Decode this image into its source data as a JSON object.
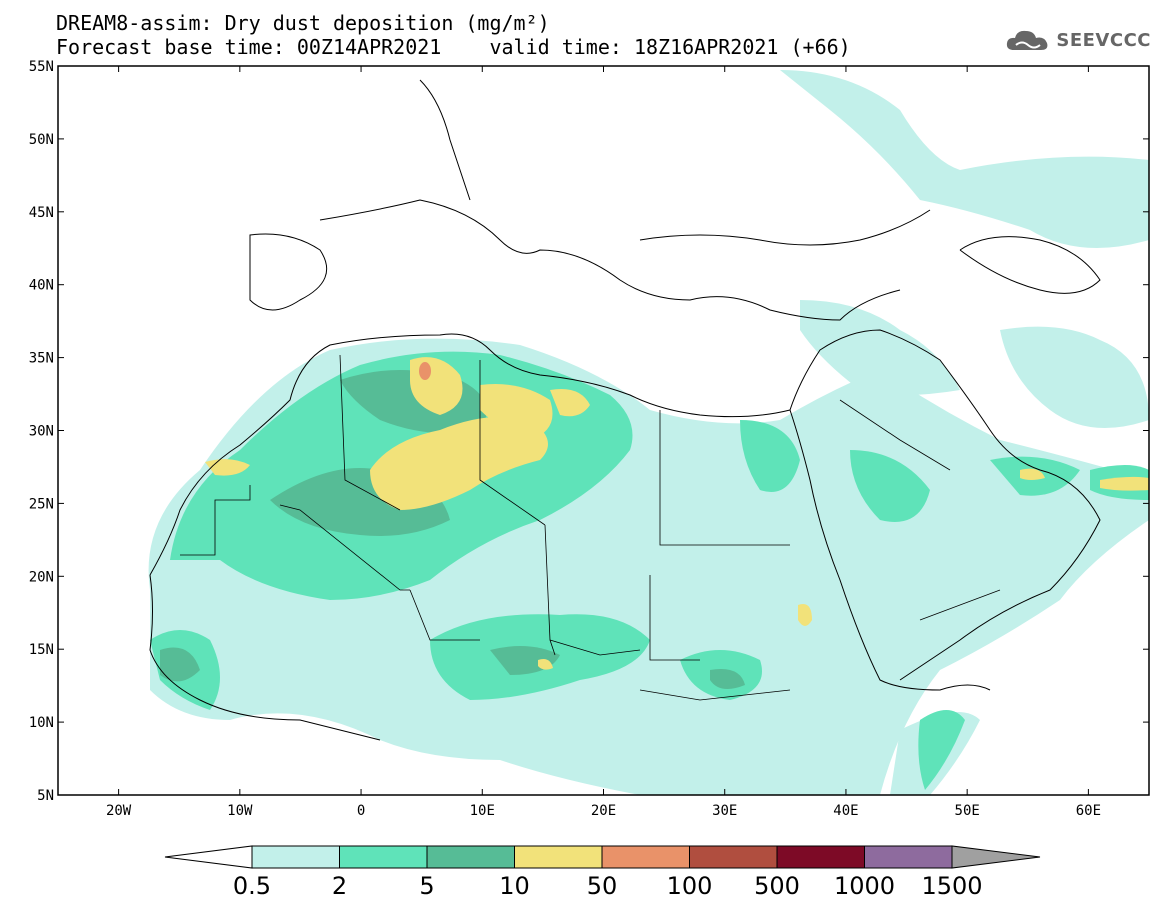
{
  "title": {
    "line1": "DREAM8-assim: Dry dust deposition (mg/m²)",
    "line2": "Forecast base time: 00Z14APR2021    valid time: 18Z16APR2021 (+66)"
  },
  "logo": {
    "text": "SEEVCCC",
    "icon": "cloud-icon"
  },
  "map": {
    "projection": "lat-lon",
    "lon_range": [
      -25,
      65
    ],
    "lat_range": [
      5,
      55
    ],
    "lon_ticks": [
      "20W",
      "10W",
      "0",
      "10E",
      "20E",
      "30E",
      "40E",
      "50E",
      "60E"
    ],
    "lat_ticks": [
      "55N",
      "50N",
      "45N",
      "40N",
      "35N",
      "30N",
      "25N",
      "20N",
      "15N",
      "10N",
      "5N"
    ]
  },
  "colorbar": {
    "labels": [
      "0.5",
      "2",
      "5",
      "10",
      "50",
      "100",
      "500",
      "1000",
      "1500"
    ],
    "colors": [
      "#c2f0ea",
      "#5fe3b9",
      "#56bc96",
      "#f2e27a",
      "#e99269",
      "#b04e3f",
      "#7d0a26",
      "#8e6b9e"
    ],
    "under_color": "#ffffff",
    "over_color": "#a0a0a0"
  },
  "legend_colors": {
    "level1": "#c2f0ea",
    "level2": "#5fe3b9",
    "level3": "#56bc96",
    "level4": "#f2e27a",
    "level5": "#e99269"
  }
}
